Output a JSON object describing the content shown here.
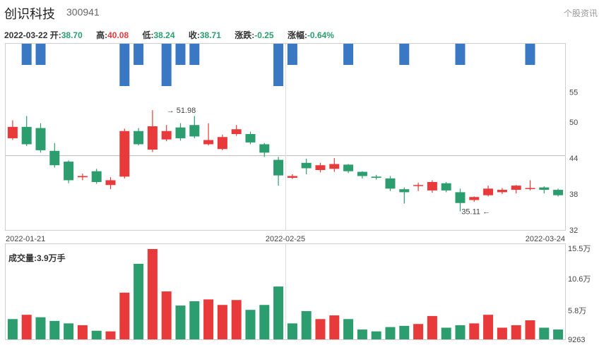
{
  "stock": {
    "name": "创识科技",
    "code": "300941",
    "profile_link": "个股资讯"
  },
  "quote": {
    "date": "2022-03-22",
    "open_label": "开:",
    "open": "38.70",
    "high_label": "高:",
    "high": "40.08",
    "low_label": "低:",
    "low": "38.24",
    "close_label": "收:",
    "close": "38.71",
    "change_label": "涨跌:",
    "change": "-0.25",
    "pct_label": "涨幅:",
    "pct": "-0.64%"
  },
  "colors": {
    "up": "#e83a3a",
    "down": "#2c9d6e",
    "signal": "#3a78c4",
    "grid": "#dddddd"
  },
  "chart_data": {
    "type": "candlestick",
    "x_ticks": [
      {
        "label": "2022-01-21",
        "index": 0
      },
      {
        "label": "2022-02-25",
        "index": 20
      },
      {
        "label": "2022-03-24",
        "index": 40
      }
    ],
    "price_axis": {
      "ticks": [
        "55",
        "50",
        "44",
        "38",
        "32"
      ],
      "ylim": [
        32,
        56
      ]
    },
    "reference_line": 44.4,
    "max_annotation": {
      "label": "→ 51.98",
      "value": 51.98,
      "index": 11
    },
    "min_annotation": {
      "label": "35.11 ←",
      "value": 35.11,
      "index": 34
    },
    "signals": [
      {
        "index": 1,
        "size": "short"
      },
      {
        "index": 2,
        "size": "short"
      },
      {
        "index": 8,
        "size": "long"
      },
      {
        "index": 9,
        "size": "short"
      },
      {
        "index": 11,
        "size": "long"
      },
      {
        "index": 12,
        "size": "short"
      },
      {
        "index": 13,
        "size": "short"
      },
      {
        "index": 19,
        "size": "long"
      },
      {
        "index": 20,
        "size": "short"
      },
      {
        "index": 24,
        "size": "short"
      },
      {
        "index": 28,
        "size": "short"
      },
      {
        "index": 32,
        "size": "short"
      },
      {
        "index": 37,
        "size": "short"
      }
    ],
    "candles": [
      {
        "o": 47.3,
        "c": 49.2,
        "h": 50.3,
        "l": 47.0
      },
      {
        "o": 49.2,
        "c": 46.3,
        "h": 51.0,
        "l": 46.0
      },
      {
        "o": 49.0,
        "c": 45.3,
        "h": 49.8,
        "l": 44.9
      },
      {
        "o": 45.2,
        "c": 42.8,
        "h": 46.5,
        "l": 42.4
      },
      {
        "o": 43.4,
        "c": 40.3,
        "h": 43.6,
        "l": 39.8
      },
      {
        "o": 40.8,
        "c": 41.0,
        "h": 41.4,
        "l": 40.3
      },
      {
        "o": 41.8,
        "c": 40.0,
        "h": 42.2,
        "l": 39.7
      },
      {
        "o": 39.5,
        "c": 40.3,
        "h": 40.8,
        "l": 38.8
      },
      {
        "o": 40.9,
        "c": 48.5,
        "h": 48.9,
        "l": 40.6
      },
      {
        "o": 48.5,
        "c": 46.3,
        "h": 49.0,
        "l": 46.1
      },
      {
        "o": 45.4,
        "c": 49.3,
        "h": 51.98,
        "l": 45.0
      },
      {
        "o": 47.1,
        "c": 48.5,
        "h": 49.5,
        "l": 46.8
      },
      {
        "o": 49.1,
        "c": 47.3,
        "h": 49.8,
        "l": 46.9
      },
      {
        "o": 49.5,
        "c": 47.6,
        "h": 51.0,
        "l": 47.3
      },
      {
        "o": 46.3,
        "c": 47.0,
        "h": 49.8,
        "l": 46.1
      },
      {
        "o": 45.5,
        "c": 47.5,
        "h": 47.9,
        "l": 45.3
      },
      {
        "o": 48.0,
        "c": 48.8,
        "h": 49.5,
        "l": 47.7
      },
      {
        "o": 48.0,
        "c": 46.6,
        "h": 48.4,
        "l": 46.3
      },
      {
        "o": 46.3,
        "c": 44.9,
        "h": 46.5,
        "l": 44.2
      },
      {
        "o": 43.7,
        "c": 41.1,
        "h": 44.2,
        "l": 39.4
      },
      {
        "o": 40.7,
        "c": 41.0,
        "h": 41.3,
        "l": 40.5
      },
      {
        "o": 43.2,
        "c": 42.3,
        "h": 43.9,
        "l": 41.3
      },
      {
        "o": 42.0,
        "c": 42.8,
        "h": 43.2,
        "l": 41.6
      },
      {
        "o": 42.2,
        "c": 43.0,
        "h": 44.0,
        "l": 41.7
      },
      {
        "o": 42.9,
        "c": 41.8,
        "h": 43.0,
        "l": 41.5
      },
      {
        "o": 41.7,
        "c": 41.0,
        "h": 41.8,
        "l": 40.6
      },
      {
        "o": 40.9,
        "c": 40.7,
        "h": 41.2,
        "l": 40.4
      },
      {
        "o": 40.6,
        "c": 38.9,
        "h": 41.0,
        "l": 38.5
      },
      {
        "o": 38.8,
        "c": 38.3,
        "h": 39.1,
        "l": 36.4
      },
      {
        "o": 39.4,
        "c": 39.5,
        "h": 39.9,
        "l": 38.5
      },
      {
        "o": 38.6,
        "c": 40.0,
        "h": 40.3,
        "l": 38.2
      },
      {
        "o": 39.8,
        "c": 38.6,
        "h": 40.0,
        "l": 38.3
      },
      {
        "o": 38.3,
        "c": 36.5,
        "h": 38.9,
        "l": 35.11
      },
      {
        "o": 37.0,
        "c": 37.5,
        "h": 37.6,
        "l": 36.7
      },
      {
        "o": 37.8,
        "c": 38.9,
        "h": 39.4,
        "l": 37.6
      },
      {
        "o": 38.3,
        "c": 38.7,
        "h": 39.0,
        "l": 38.0
      },
      {
        "o": 38.7,
        "c": 39.4,
        "h": 39.5,
        "l": 38.1
      },
      {
        "o": 38.9,
        "c": 39.0,
        "h": 40.3,
        "l": 38.6
      },
      {
        "o": 39.1,
        "c": 38.7,
        "h": 39.3,
        "l": 38.1
      },
      {
        "o": 38.7,
        "c": 37.8,
        "h": 38.9,
        "l": 37.6
      }
    ],
    "volume": {
      "label": "成交量:3.9万手",
      "axis_ticks": [
        "15.5万",
        "10.6万",
        "5.8万",
        "9263"
      ],
      "ylim": [
        0,
        15.5
      ],
      "values": [
        3.3,
        4.0,
        3.6,
        3.0,
        2.6,
        2.3,
        1.4,
        1.3,
        7.6,
        12.3,
        14.7,
        7.8,
        5.5,
        6.2,
        6.5,
        5.6,
        6.4,
        4.8,
        5.6,
        8.6,
        2.6,
        4.6,
        3.3,
        3.9,
        3.3,
        1.6,
        1.3,
        2.0,
        2.2,
        2.5,
        3.8,
        1.9,
        2.3,
        2.6,
        4.0,
        1.9,
        2.3,
        3.1,
        1.9,
        1.6
      ],
      "colors": [
        "down",
        "up",
        "down",
        "down",
        "down",
        "up",
        "down",
        "up",
        "up",
        "down",
        "up",
        "up",
        "down",
        "down",
        "up",
        "up",
        "up",
        "down",
        "down",
        "down",
        "down",
        "down",
        "up",
        "up",
        "down",
        "down",
        "down",
        "down",
        "down",
        "up",
        "up",
        "down",
        "down",
        "up",
        "up",
        "up",
        "up",
        "up",
        "down",
        "down"
      ]
    }
  }
}
